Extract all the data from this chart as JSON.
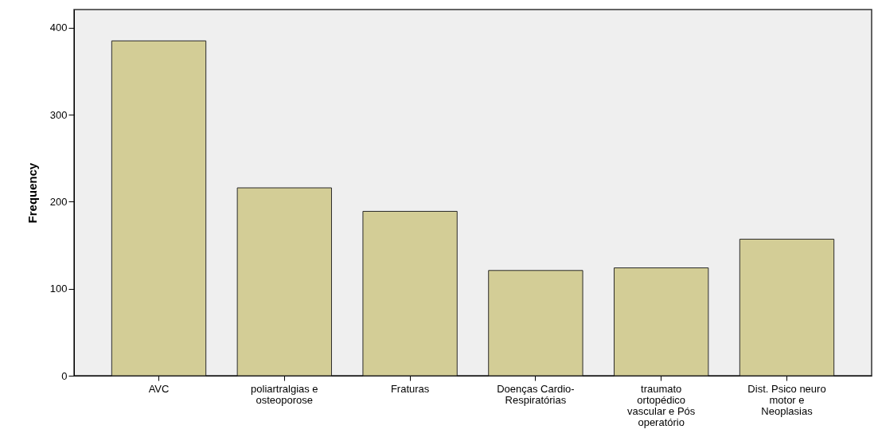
{
  "chart_data": {
    "type": "bar",
    "ylabel": "Frequency",
    "categories": [
      "AVC",
      "poliartralgias e osteoporose",
      "Fraturas",
      "Doenças Cardio-Respiratórias",
      "traumato ortopédico vascular e Pós operatório",
      "Dist. Psico neuro motor e Neoplasias"
    ],
    "values": [
      385,
      216,
      189,
      121,
      124,
      157
    ],
    "color": "#d3cd96",
    "ylim": [
      0,
      421
    ],
    "yticks": [
      0,
      100,
      200,
      300,
      400
    ],
    "grid": false
  }
}
